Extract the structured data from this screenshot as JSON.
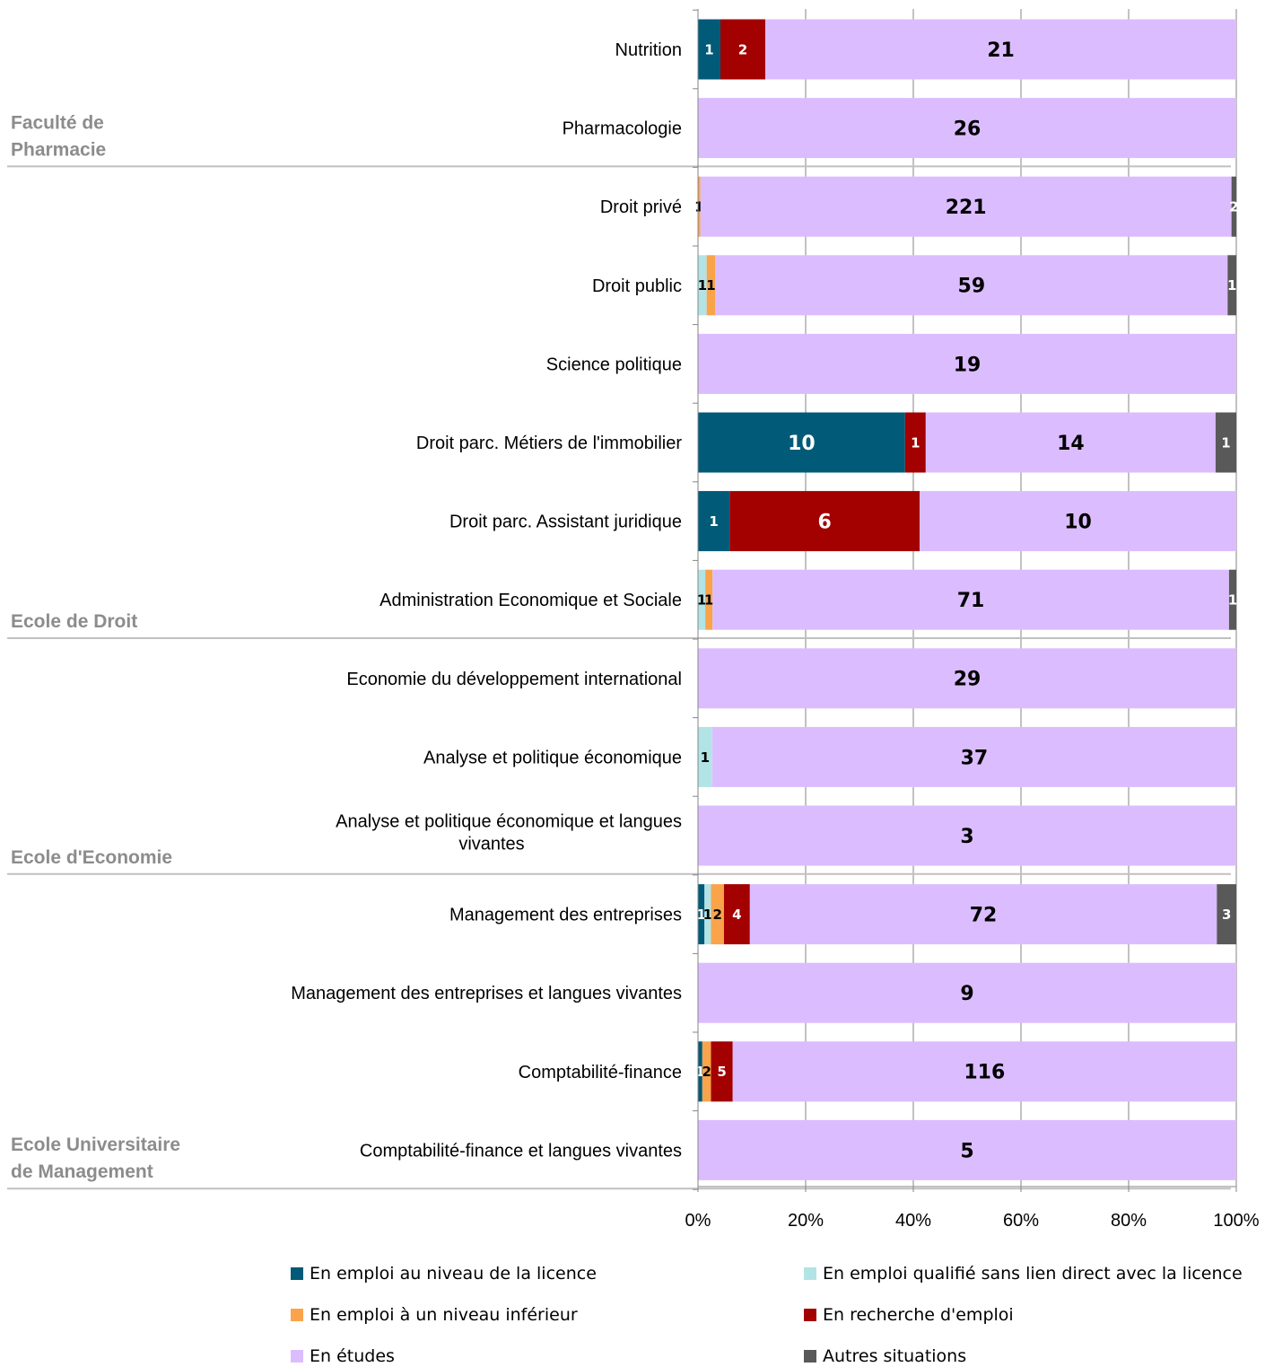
{
  "chart_data": {
    "type": "bar",
    "orientation": "horizontal",
    "stacked": "percent",
    "xlim": [
      0,
      100
    ],
    "x_ticks": [
      "0%",
      "20%",
      "40%",
      "60%",
      "80%",
      "100%"
    ],
    "grid": true,
    "legend_position": "bottom",
    "groups": [
      {
        "name": "Faculté de Pharmacie",
        "lines": [
          "Faculté de",
          "Pharmacie"
        ]
      },
      {
        "name": "Ecole de Droit",
        "lines": [
          "Ecole de Droit"
        ]
      },
      {
        "name": "Ecole d'Economie",
        "lines": [
          "Ecole d'Economie"
        ]
      },
      {
        "name": "Ecole Universitaire de Management",
        "lines": [
          "Ecole Universitaire",
          "de Management"
        ]
      }
    ],
    "categories": [
      {
        "lines": [
          "Nutrition"
        ],
        "group": 0
      },
      {
        "lines": [
          "Pharmacologie"
        ],
        "group": 0
      },
      {
        "lines": [
          "Droit privé"
        ],
        "group": 1
      },
      {
        "lines": [
          "Droit public"
        ],
        "group": 1
      },
      {
        "lines": [
          "Science politique"
        ],
        "group": 1
      },
      {
        "lines": [
          "Droit parc. Métiers de l'immobilier"
        ],
        "group": 1
      },
      {
        "lines": [
          "Droit parc. Assistant juridique"
        ],
        "group": 1
      },
      {
        "lines": [
          "Administration Economique et Sociale"
        ],
        "group": 1
      },
      {
        "lines": [
          "Economie du développement international"
        ],
        "group": 2
      },
      {
        "lines": [
          "Analyse et politique économique"
        ],
        "group": 2
      },
      {
        "lines": [
          "Analyse et politique économique et langues",
          "vivantes"
        ],
        "group": 2
      },
      {
        "lines": [
          "Management des entreprises"
        ],
        "group": 3
      },
      {
        "lines": [
          "Management des entreprises et langues vivantes"
        ],
        "group": 3
      },
      {
        "lines": [
          "Comptabilité-finance"
        ],
        "group": 3
      },
      {
        "lines": [
          "Comptabilité-finance et langues vivantes"
        ],
        "group": 3
      }
    ],
    "series": [
      {
        "name": "En emploi au niveau de la licence",
        "color": "#005a78",
        "label_color": "#ffffff",
        "values": [
          1,
          0,
          0,
          0,
          0,
          10,
          1,
          0,
          0,
          0,
          0,
          1,
          0,
          1,
          0
        ]
      },
      {
        "name": "En emploi qualifié sans lien direct avec la licence",
        "color": "#b2e4e6",
        "label_color": "#000000",
        "values": [
          0,
          0,
          0,
          1,
          0,
          0,
          0,
          1,
          0,
          1,
          0,
          1,
          0,
          0,
          0
        ]
      },
      {
        "name": "En emploi à un niveau inférieur",
        "color": "#f9a34b",
        "label_color": "#000000",
        "values": [
          0,
          0,
          1,
          1,
          0,
          0,
          0,
          1,
          0,
          0,
          0,
          2,
          0,
          2,
          0
        ]
      },
      {
        "name": "En recherche d'emploi",
        "color": "#a30000",
        "label_color": "#ffffff",
        "values": [
          2,
          0,
          0,
          0,
          0,
          1,
          6,
          0,
          0,
          0,
          0,
          4,
          0,
          5,
          0
        ]
      },
      {
        "name": "En études",
        "color": "#dbbdff",
        "label_color": "#000000",
        "values": [
          21,
          26,
          221,
          59,
          19,
          14,
          10,
          71,
          29,
          37,
          3,
          72,
          9,
          116,
          5
        ]
      },
      {
        "name": "Autres situations",
        "color": "#595959",
        "label_color": "#ffffff",
        "values": [
          0,
          0,
          2,
          1,
          0,
          1,
          0,
          1,
          0,
          0,
          0,
          3,
          0,
          0,
          0
        ]
      }
    ]
  }
}
